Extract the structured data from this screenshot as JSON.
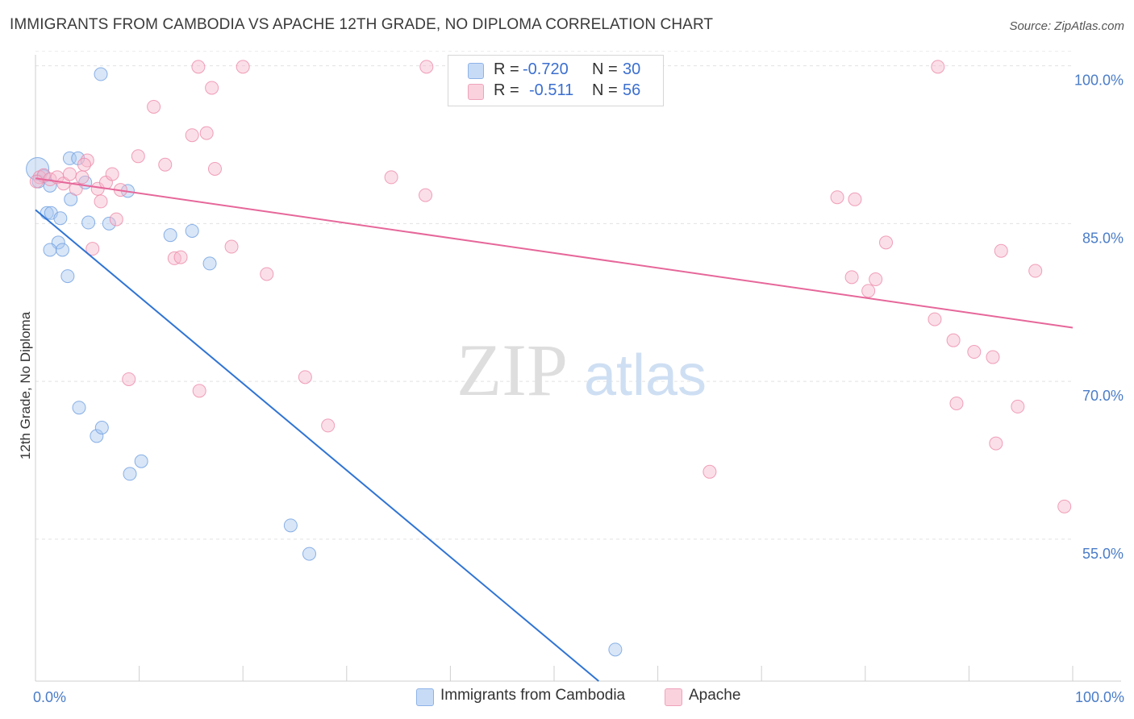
{
  "header": {
    "title": "IMMIGRANTS FROM CAMBODIA VS APACHE 12TH GRADE, NO DIPLOMA CORRELATION CHART",
    "source": "Source: ZipAtlas.com"
  },
  "watermark": {
    "zip": "ZIP",
    "atlas": "atlas"
  },
  "legend": {
    "rows": [
      {
        "r_label": "R =",
        "r_value": "-0.720",
        "n_label": "N =",
        "n_value": "30",
        "color": "#a9c7f0"
      },
      {
        "r_label": "R =",
        "r_value": "-0.511",
        "n_label": "N =",
        "n_value": "56",
        "color": "#f6b8cb"
      }
    ]
  },
  "bottom_legend": [
    {
      "label": "Immigrants from Cambodia",
      "color": "#a9c7f0"
    },
    {
      "label": "Apache",
      "color": "#f6b8cb"
    }
  ],
  "chart_data": {
    "type": "scatter",
    "title": "IMMIGRANTS FROM CAMBODIA VS APACHE 12TH GRADE, NO DIPLOMA CORRELATION CHART",
    "xlabel": "",
    "ylabel": "12th Grade, No Diploma",
    "xlim": [
      0,
      100
    ],
    "ylim": [
      41.5,
      101.5
    ],
    "x_ticks": [
      {
        "value": 0,
        "label": "0.0%"
      },
      {
        "value": 100,
        "label": "100.0%"
      }
    ],
    "y_ticks": [
      {
        "value": 100,
        "label": "100.0%"
      },
      {
        "value": 85,
        "label": "85.0%"
      },
      {
        "value": 70,
        "label": "70.0%"
      },
      {
        "value": 55,
        "label": "55.0%"
      }
    ],
    "x_minor_ticks": [
      0,
      10,
      20,
      30,
      40,
      50,
      60,
      70,
      80,
      90,
      100
    ],
    "grid": true,
    "series": [
      {
        "name": "Immigrants from Cambodia",
        "color": "#6f9fe0",
        "fill": "#a9c7f0",
        "points": [
          [
            0.2,
            90.2
          ],
          [
            0.3,
            89.0
          ],
          [
            0.8,
            89.5
          ],
          [
            1.4,
            88.6
          ],
          [
            1.1,
            86.0
          ],
          [
            1.5,
            86.0
          ],
          [
            2.4,
            85.5
          ],
          [
            2.2,
            83.2
          ],
          [
            1.4,
            82.5
          ],
          [
            2.6,
            82.5
          ],
          [
            3.1,
            80.0
          ],
          [
            3.4,
            87.3
          ],
          [
            3.3,
            91.2
          ],
          [
            4.1,
            91.2
          ],
          [
            4.8,
            88.9
          ],
          [
            5.1,
            85.1
          ],
          [
            7.1,
            85.0
          ],
          [
            8.9,
            88.1
          ],
          [
            6.3,
            99.2
          ],
          [
            13.0,
            83.9
          ],
          [
            15.1,
            84.3
          ],
          [
            16.8,
            81.2
          ],
          [
            4.2,
            67.5
          ],
          [
            5.9,
            64.8
          ],
          [
            6.4,
            65.6
          ],
          [
            9.1,
            61.2
          ],
          [
            10.2,
            62.4
          ],
          [
            24.6,
            56.3
          ],
          [
            26.4,
            53.6
          ],
          [
            55.9,
            44.5
          ]
        ],
        "trend": {
          "x": [
            0.0,
            54.3
          ],
          "y": [
            86.3,
            41.5
          ]
        }
      },
      {
        "name": "Apache",
        "color": "#ec8aa9",
        "fill": "#f6b8cb",
        "points": [
          [
            0.4,
            89.4
          ],
          [
            0.8,
            89.6
          ],
          [
            1.4,
            89.2
          ],
          [
            2.1,
            89.4
          ],
          [
            2.7,
            88.8
          ],
          [
            3.3,
            89.7
          ],
          [
            3.9,
            88.3
          ],
          [
            4.5,
            89.4
          ],
          [
            5.0,
            91.0
          ],
          [
            4.7,
            90.6
          ],
          [
            5.5,
            82.6
          ],
          [
            6.0,
            88.3
          ],
          [
            6.3,
            87.1
          ],
          [
            6.8,
            88.9
          ],
          [
            7.4,
            89.7
          ],
          [
            7.8,
            85.4
          ],
          [
            8.2,
            88.2
          ],
          [
            9.9,
            91.4
          ],
          [
            11.4,
            96.1
          ],
          [
            12.5,
            90.6
          ],
          [
            13.4,
            81.7
          ],
          [
            14.0,
            81.8
          ],
          [
            15.1,
            93.4
          ],
          [
            15.7,
            99.9
          ],
          [
            16.5,
            93.6
          ],
          [
            17.0,
            97.9
          ],
          [
            17.3,
            90.2
          ],
          [
            18.9,
            82.8
          ],
          [
            20.0,
            99.9
          ],
          [
            22.3,
            80.2
          ],
          [
            15.8,
            69.1
          ],
          [
            9.0,
            70.2
          ],
          [
            26.0,
            70.4
          ],
          [
            28.2,
            65.8
          ],
          [
            34.3,
            89.4
          ],
          [
            37.6,
            87.7
          ],
          [
            37.7,
            99.9
          ],
          [
            65.0,
            61.4
          ],
          [
            77.3,
            87.5
          ],
          [
            79.0,
            87.3
          ],
          [
            78.7,
            79.9
          ],
          [
            80.3,
            78.6
          ],
          [
            81.0,
            79.7
          ],
          [
            82.0,
            83.2
          ],
          [
            87.0,
            99.9
          ],
          [
            86.7,
            75.9
          ],
          [
            88.5,
            73.9
          ],
          [
            88.8,
            67.9
          ],
          [
            90.5,
            72.8
          ],
          [
            92.3,
            72.3
          ],
          [
            92.6,
            64.1
          ],
          [
            93.1,
            82.4
          ],
          [
            94.7,
            67.6
          ],
          [
            96.4,
            80.5
          ],
          [
            99.2,
            58.1
          ],
          [
            0.1,
            89.0
          ]
        ],
        "trend": {
          "x": [
            0.0,
            100.0
          ],
          "y": [
            89.3,
            75.1
          ]
        }
      }
    ]
  }
}
